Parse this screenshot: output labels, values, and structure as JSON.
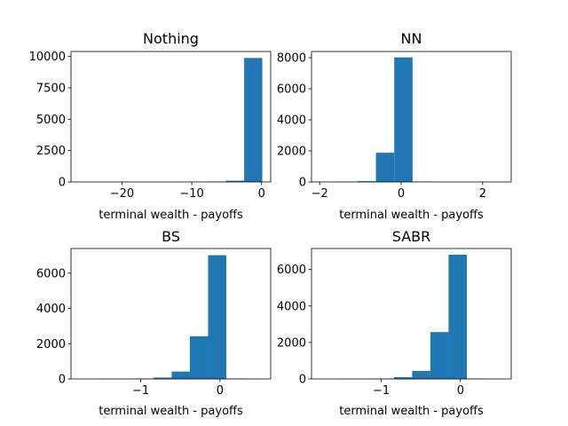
{
  "chart_data": [
    {
      "type": "bar",
      "title": "Nothing",
      "xlabel": "terminal wealth - payoffs",
      "ylabel": "",
      "xlim": [
        -27.3,
        1.3
      ],
      "ylim": [
        0,
        10400
      ],
      "xticks": [
        -20,
        -10,
        0
      ],
      "yticks": [
        0,
        2500,
        5000,
        7500,
        10000
      ],
      "bar_color": "#1f77b4",
      "bins": [
        {
          "x0": -25.9,
          "x1": -23.3,
          "count": 1
        },
        {
          "x0": -23.3,
          "x1": -20.7,
          "count": 0
        },
        {
          "x0": -20.7,
          "x1": -18.1,
          "count": 0
        },
        {
          "x0": -18.1,
          "x1": -15.5,
          "count": 0
        },
        {
          "x0": -15.5,
          "x1": -12.9,
          "count": 0
        },
        {
          "x0": -12.9,
          "x1": -10.3,
          "count": 0
        },
        {
          "x0": -10.3,
          "x1": -7.7,
          "count": 2
        },
        {
          "x0": -7.7,
          "x1": -5.1,
          "count": 10
        },
        {
          "x0": -5.1,
          "x1": -2.5,
          "count": 100
        },
        {
          "x0": -2.5,
          "x1": 0.1,
          "count": 9880
        }
      ]
    },
    {
      "type": "bar",
      "title": "NN",
      "xlabel": "terminal wealth - payoffs",
      "ylabel": "",
      "xlim": [
        -2.2,
        2.7
      ],
      "ylim": [
        0,
        8400
      ],
      "xticks": [
        -2,
        0,
        2
      ],
      "yticks": [
        0,
        2000,
        4000,
        6000,
        8000
      ],
      "bar_color": "#1f77b4",
      "bins": [
        {
          "x0": -1.97,
          "x1": -1.52,
          "count": 2
        },
        {
          "x0": -1.52,
          "x1": -1.07,
          "count": 5
        },
        {
          "x0": -1.07,
          "x1": -0.62,
          "count": 50
        },
        {
          "x0": -0.62,
          "x1": -0.17,
          "count": 1880
        },
        {
          "x0": -0.17,
          "x1": 0.28,
          "count": 8020
        },
        {
          "x0": 0.28,
          "x1": 0.73,
          "count": 20
        },
        {
          "x0": 0.73,
          "x1": 1.18,
          "count": 3
        },
        {
          "x0": 1.18,
          "x1": 1.63,
          "count": 1
        },
        {
          "x0": 1.63,
          "x1": 2.08,
          "count": 0
        },
        {
          "x0": 2.08,
          "x1": 2.53,
          "count": 1
        }
      ]
    },
    {
      "type": "bar",
      "title": "BS",
      "xlabel": "terminal wealth - payoffs",
      "ylabel": "",
      "xlim": [
        -1.88,
        0.64
      ],
      "ylim": [
        0,
        7400
      ],
      "xticks": [
        -1,
        0
      ],
      "yticks": [
        0,
        2000,
        4000,
        6000
      ],
      "bar_color": "#1f77b4",
      "bins": [
        {
          "x0": -1.76,
          "x1": -1.53,
          "count": 2
        },
        {
          "x0": -1.53,
          "x1": -1.3,
          "count": 3
        },
        {
          "x0": -1.3,
          "x1": -1.07,
          "count": 8
        },
        {
          "x0": -1.07,
          "x1": -0.84,
          "count": 20
        },
        {
          "x0": -0.84,
          "x1": -0.61,
          "count": 80
        },
        {
          "x0": -0.61,
          "x1": -0.38,
          "count": 420
        },
        {
          "x0": -0.38,
          "x1": -0.15,
          "count": 2420
        },
        {
          "x0": -0.15,
          "x1": 0.08,
          "count": 7020
        },
        {
          "x0": 0.08,
          "x1": 0.31,
          "count": 20
        },
        {
          "x0": 0.31,
          "x1": 0.54,
          "count": 5
        }
      ]
    },
    {
      "type": "bar",
      "title": "SABR",
      "xlabel": "terminal wealth - payoffs",
      "ylabel": "",
      "xlim": [
        -1.88,
        0.64
      ],
      "ylim": [
        0,
        7150
      ],
      "xticks": [
        -1,
        0
      ],
      "yticks": [
        0,
        2000,
        4000,
        6000
      ],
      "bar_color": "#1f77b4",
      "bins": [
        {
          "x0": -1.76,
          "x1": -1.53,
          "count": 2
        },
        {
          "x0": -1.53,
          "x1": -1.3,
          "count": 3
        },
        {
          "x0": -1.3,
          "x1": -1.07,
          "count": 8
        },
        {
          "x0": -1.07,
          "x1": -0.84,
          "count": 20
        },
        {
          "x0": -0.84,
          "x1": -0.61,
          "count": 100
        },
        {
          "x0": -0.61,
          "x1": -0.38,
          "count": 440
        },
        {
          "x0": -0.38,
          "x1": -0.15,
          "count": 2570
        },
        {
          "x0": -0.15,
          "x1": 0.08,
          "count": 6810
        },
        {
          "x0": 0.08,
          "x1": 0.31,
          "count": 20
        },
        {
          "x0": 0.31,
          "x1": 0.54,
          "count": 5
        }
      ]
    }
  ]
}
